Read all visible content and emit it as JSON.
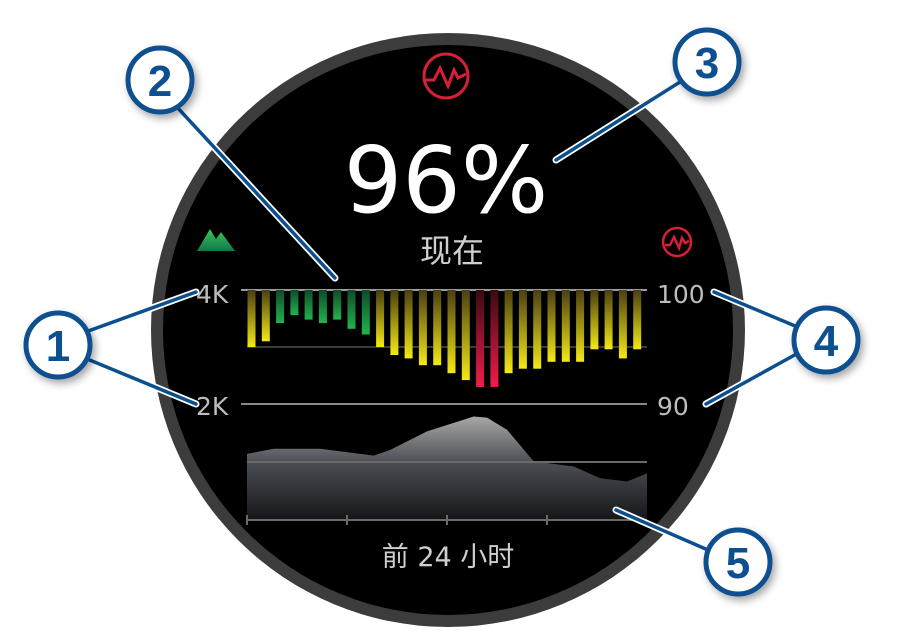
{
  "watch": {
    "value": "96%",
    "value_caption": "现在",
    "time_range_label": "前 24 小时",
    "top_icon": "pulse-ox-icon",
    "right_icon": "pulse-ox-icon",
    "left_icon": "mountain-elevation-icon",
    "left_axis": {
      "top": "4K",
      "bottom": "2K"
    },
    "right_axis": {
      "top": "100",
      "bottom": "90"
    }
  },
  "callouts": [
    "1",
    "2",
    "3",
    "4",
    "5"
  ],
  "colors": {
    "callout_blue": "#0b4f8f",
    "pulse_red": "#e0203a",
    "bar_yellow": "#f2e51a",
    "bar_green": "#1fae4a",
    "bar_red": "#f01c4a",
    "bezel": "#3a3a3a"
  },
  "chart_data": [
    {
      "type": "bar",
      "title": "",
      "ylabel": "",
      "ylim": [
        90,
        100
      ],
      "yticks": [
        "100",
        "90"
      ],
      "bars_hang_from_top": true,
      "values": [
        95.0,
        95.5,
        97.1,
        97.8,
        97.4,
        97.1,
        97.4,
        96.6,
        96.1,
        95.0,
        94.3,
        94.0,
        93.4,
        93.4,
        92.7,
        92.1,
        91.5,
        91.5,
        92.7,
        93.1,
        93.1,
        93.7,
        93.7,
        93.7,
        94.8,
        94.8,
        94.0,
        94.8
      ],
      "colors_by_level": "green above ~96, yellow mid, red below ~92"
    },
    {
      "type": "area",
      "title": "",
      "ylabel": "",
      "ylim": [
        0,
        4000
      ],
      "yticks": [
        "4K",
        "2K"
      ],
      "xlim": [
        0,
        24
      ],
      "x": [
        0,
        1.6,
        4.4,
        7.6,
        8.6,
        10.8,
        13.6,
        14.4,
        15.6,
        17.2,
        19.6,
        21.2,
        22.8,
        24
      ],
      "y": [
        1150,
        1240,
        1240,
        1120,
        1220,
        1540,
        1800,
        1780,
        1570,
        1020,
        930,
        725,
        670,
        810
      ]
    }
  ]
}
